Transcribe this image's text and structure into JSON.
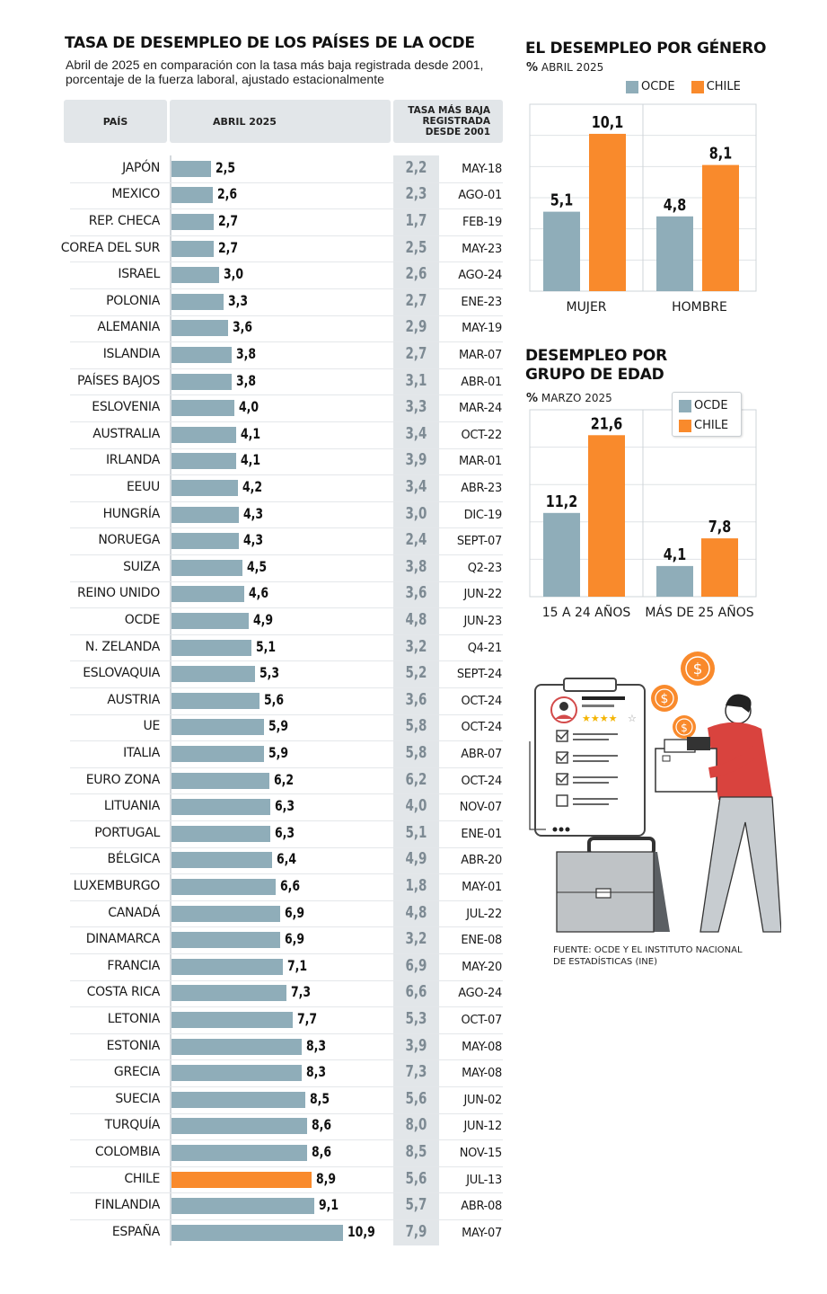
{
  "main": {
    "title": "TASA DE DESEMPLEO DE LOS PAÍSES DE LA OCDE",
    "subtitle_line1": "Abril de 2025 en comparación con la tasa más baja registrada desde 2001,",
    "subtitle_line2": "porcentaje de la fuerza laboral, ajustado estacionalmente",
    "header_country": "PAÍS",
    "header_april": "ABRIL 2025",
    "header_lowest_l1": "TASA MÁS BAJA",
    "header_lowest_l2": "REGISTRADA",
    "header_lowest_l3": "DESDE 2001"
  },
  "gender": {
    "title": "EL DESEMPLEO POR GÉNERO",
    "unit": "%",
    "subtitle": "ABRIL 2025",
    "legend_ocde": "OCDE",
    "legend_chile": "CHILE"
  },
  "age": {
    "title_l1": "DESEMPLEO POR",
    "title_l2": "GRUPO DE EDAD",
    "unit": "%",
    "subtitle": "MARZO 2025",
    "legend_ocde": "OCDE",
    "legend_chile": "CHILE"
  },
  "source": {
    "line1": "FUENTE: OCDE Y EL INSTITUTO NACIONAL",
    "line2": "DE ESTADÍSTICAS (INE)"
  },
  "colors": {
    "ocde": "#8fadb9",
    "chile": "#f98a2c",
    "header_bg": "#e2e6e9",
    "low_col_bg": "#e2e6e9",
    "grid": "#dfe3e6"
  },
  "icons": [
    "clipboard-icon",
    "dollar-coin-icon",
    "briefcase-icon",
    "person-carrying-box-icon"
  ],
  "chart_data": [
    {
      "type": "bar",
      "title": "TASA DE DESEMPLEO DE LOS PAÍSES DE LA OCDE",
      "orientation": "horizontal",
      "xlim": [
        0,
        11
      ],
      "categories": [
        "JAPÓN",
        "MEXICO",
        "REP. CHECA",
        "COREA DEL SUR",
        "ISRAEL",
        "POLONIA",
        "ALEMANIA",
        "ISLANDIA",
        "PAÍSES BAJOS",
        "ESLOVENIA",
        "AUSTRALIA",
        "IRLANDA",
        "EEUU",
        "HUNGRÍA",
        "NORUEGA",
        "SUIZA",
        "REINO UNIDO",
        "OCDE",
        "N. ZELANDA",
        "ESLOVAQUIA",
        "AUSTRIA",
        "UE",
        "ITALIA",
        "EURO ZONA",
        "LITUANIA",
        "PORTUGAL",
        "BÉLGICA",
        "LUXEMBURGO",
        "CANADÁ",
        "DINAMARCA",
        "FRANCIA",
        "COSTA RICA",
        "LETONIA",
        "ESTONIA",
        "GRECIA",
        "SUECIA",
        "TURQUÍA",
        "COLOMBIA",
        "CHILE",
        "FINLANDIA",
        "ESPAÑA"
      ],
      "values": [
        2.5,
        2.6,
        2.7,
        2.7,
        3.0,
        3.3,
        3.6,
        3.8,
        3.8,
        4.0,
        4.1,
        4.1,
        4.2,
        4.3,
        4.3,
        4.5,
        4.6,
        4.9,
        5.1,
        5.3,
        5.6,
        5.9,
        5.9,
        6.2,
        6.3,
        6.3,
        6.4,
        6.6,
        6.9,
        6.9,
        7.1,
        7.3,
        7.7,
        8.3,
        8.3,
        8.5,
        8.6,
        8.6,
        8.9,
        9.1,
        10.9
      ],
      "value_labels": [
        "2,5",
        "2,6",
        "2,7",
        "2,7",
        "3,0",
        "3,3",
        "3,6",
        "3,8",
        "3,8",
        "4,0",
        "4,1",
        "4,1",
        "4,2",
        "4,3",
        "4,3",
        "4,5",
        "4,6",
        "4,9",
        "5,1",
        "5,3",
        "5,6",
        "5,9",
        "5,9",
        "6,2",
        "6,3",
        "6,3",
        "6,4",
        "6,6",
        "6,9",
        "6,9",
        "7,1",
        "7,3",
        "7,7",
        "8,3",
        "8,3",
        "8,5",
        "8,6",
        "8,6",
        "8,9",
        "9,1",
        "10,9"
      ],
      "highlight": "CHILE",
      "lowest_values": [
        2.2,
        2.3,
        1.7,
        2.5,
        2.6,
        2.7,
        2.9,
        2.7,
        3.1,
        3.3,
        3.4,
        3.9,
        3.4,
        3.0,
        2.4,
        3.8,
        3.6,
        4.8,
        3.2,
        5.2,
        3.6,
        5.8,
        5.8,
        6.2,
        4.0,
        5.1,
        4.9,
        1.8,
        4.8,
        3.2,
        6.9,
        6.6,
        5.3,
        3.9,
        7.3,
        5.6,
        8.0,
        8.5,
        5.6,
        5.7,
        7.9
      ],
      "lowest_labels": [
        "2,2",
        "2,3",
        "1,7",
        "2,5",
        "2,6",
        "2,7",
        "2,9",
        "2,7",
        "3,1",
        "3,3",
        "3,4",
        "3,9",
        "3,4",
        "3,0",
        "2,4",
        "3,8",
        "3,6",
        "4,8",
        "3,2",
        "5,2",
        "3,6",
        "5,8",
        "5,8",
        "6,2",
        "4,0",
        "5,1",
        "4,9",
        "1,8",
        "4,8",
        "3,2",
        "6,9",
        "6,6",
        "5,3",
        "3,9",
        "7,3",
        "5,6",
        "8,0",
        "8,5",
        "5,6",
        "5,7",
        "7,9"
      ],
      "lowest_dates": [
        "MAY-18",
        "AGO-01",
        "FEB-19",
        "MAY-23",
        "AGO-24",
        "ENE-23",
        "MAY-19",
        "MAR-07",
        "ABR-01",
        "MAR-24",
        "OCT-22",
        "MAR-01",
        "ABR-23",
        "DIC-19",
        "SEPT-07",
        "Q2-23",
        "JUN-22",
        "JUN-23",
        "Q4-21",
        "SEPT-24",
        "OCT-24",
        "OCT-24",
        "ABR-07",
        "OCT-24",
        "NOV-07",
        "ENE-01",
        "ABR-20",
        "MAY-01",
        "JUL-22",
        "ENE-08",
        "MAY-20",
        "AGO-24",
        "OCT-07",
        "MAY-08",
        "MAY-08",
        "JUN-02",
        "JUN-12",
        "NOV-15",
        "JUL-13",
        "ABR-08",
        "MAY-07"
      ]
    },
    {
      "type": "bar",
      "title": "EL DESEMPLEO POR GÉNERO",
      "categories": [
        "MUJER",
        "HOMBRE"
      ],
      "ylim": [
        0,
        12
      ],
      "series": [
        {
          "name": "OCDE",
          "values": [
            5.1,
            4.8
          ],
          "labels": [
            "5,1",
            "4,8"
          ]
        },
        {
          "name": "CHILE",
          "values": [
            10.1,
            8.1
          ],
          "labels": [
            "10,1",
            "8,1"
          ]
        }
      ],
      "legend": "top-right"
    },
    {
      "type": "bar",
      "title": "DESEMPLEO POR GRUPO DE EDAD",
      "categories": [
        "15 A 24 AÑOS",
        "MÁS DE 25 AÑOS"
      ],
      "ylim": [
        0,
        25
      ],
      "series": [
        {
          "name": "OCDE",
          "values": [
            11.2,
            4.1
          ],
          "labels": [
            "11,2",
            "4,1"
          ]
        },
        {
          "name": "CHILE",
          "values": [
            21.6,
            7.8
          ],
          "labels": [
            "21,6",
            "7,8"
          ]
        }
      ],
      "legend": "top-right"
    }
  ]
}
